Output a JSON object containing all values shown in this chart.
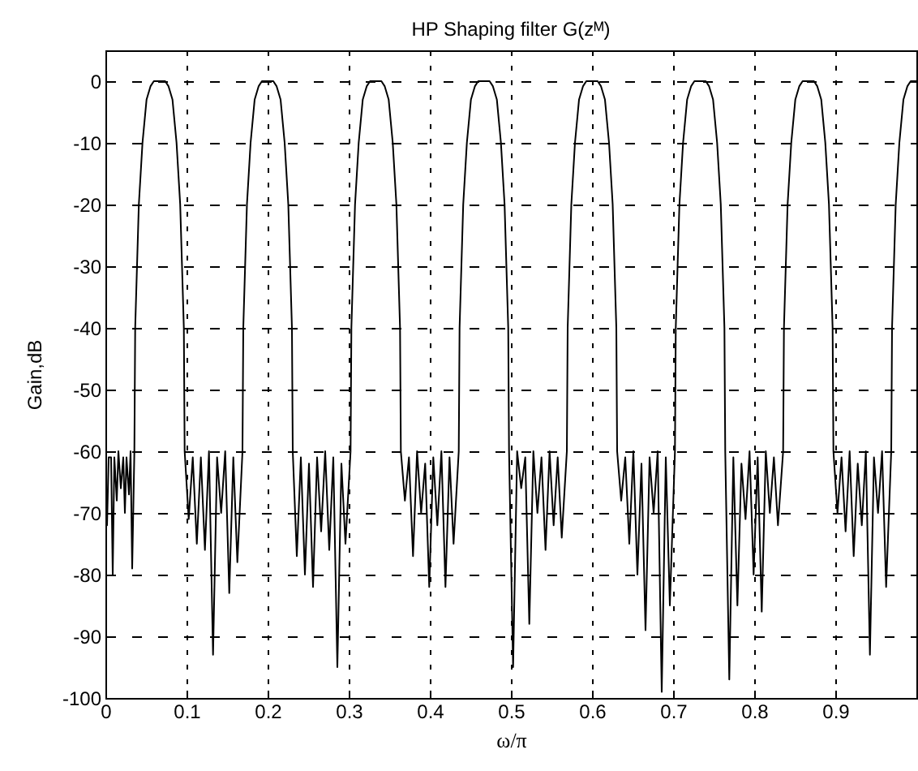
{
  "chart_data": {
    "type": "line",
    "title": "HP Shaping filter G(zᴹ)",
    "xlabel": "ω/π",
    "ylabel": "Gain,dB",
    "xlim": [
      0,
      1
    ],
    "ylim": [
      -100,
      5
    ],
    "xticks": [
      0,
      0.1,
      0.2,
      0.3,
      0.4,
      0.5,
      0.6,
      0.7,
      0.8,
      0.9
    ],
    "yticks": [
      -100,
      -90,
      -80,
      -70,
      -60,
      -50,
      -40,
      -30,
      -20,
      -10,
      0
    ],
    "grid": true,
    "line_style": "solid",
    "series": [
      {
        "color": "#000000",
        "x": [
          0,
          0.002,
          0.004,
          0.007,
          0.009,
          0.011,
          0.014,
          0.016,
          0.019,
          0.022,
          0.024,
          0.026,
          0.029,
          0.031,
          0.033,
          0.0357,
          0.0367,
          0.0412,
          0.0457,
          0.0507,
          0.0557,
          0.0597,
          0.0667,
          0.0737,
          0.0777,
          0.0827,
          0.0877,
          0.0922,
          0.0967,
          0.0977,
          0.1027,
          0.1077,
          0.1127,
          0.1177,
          0.1227,
          0.1277,
          0.1327,
          0.1377,
          0.1427,
          0.1477,
          0.1527,
          0.1577,
          0.1627,
          0.169,
          0.17,
          0.1745,
          0.179,
          0.184,
          0.189,
          0.193,
          0.2,
          0.207,
          0.211,
          0.216,
          0.221,
          0.2255,
          0.23,
          0.231,
          0.236,
          0.241,
          0.246,
          0.251,
          0.256,
          0.261,
          0.266,
          0.271,
          0.276,
          0.281,
          0.286,
          0.291,
          0.296,
          0.3023,
          0.3033,
          0.3078,
          0.3123,
          0.3173,
          0.3223,
          0.3263,
          0.3333,
          0.3403,
          0.3443,
          0.3493,
          0.3543,
          0.3588,
          0.3633,
          0.3643,
          0.3693,
          0.3743,
          0.3793,
          0.3843,
          0.3893,
          0.3943,
          0.3993,
          0.4043,
          0.4093,
          0.4143,
          0.4193,
          0.4243,
          0.4293,
          0.4357,
          0.4367,
          0.4412,
          0.4457,
          0.4507,
          0.4557,
          0.4597,
          0.4667,
          0.4737,
          0.4777,
          0.4827,
          0.4877,
          0.4922,
          0.4967,
          0.4977,
          0.5027,
          0.5077,
          0.5127,
          0.5177,
          0.5227,
          0.5277,
          0.5327,
          0.5377,
          0.5427,
          0.5477,
          0.5527,
          0.5577,
          0.5627,
          0.569,
          0.57,
          0.5745,
          0.579,
          0.584,
          0.589,
          0.593,
          0.6,
          0.607,
          0.611,
          0.616,
          0.621,
          0.6255,
          0.63,
          0.631,
          0.636,
          0.641,
          0.646,
          0.651,
          0.656,
          0.661,
          0.666,
          0.671,
          0.676,
          0.681,
          0.686,
          0.691,
          0.696,
          0.7023,
          0.7033,
          0.7078,
          0.7123,
          0.7173,
          0.7223,
          0.7263,
          0.7333,
          0.7403,
          0.7443,
          0.7493,
          0.7543,
          0.7588,
          0.7633,
          0.7643,
          0.7693,
          0.7743,
          0.7793,
          0.7843,
          0.7893,
          0.7943,
          0.7993,
          0.8043,
          0.8093,
          0.8143,
          0.8193,
          0.8243,
          0.8293,
          0.8357,
          0.8367,
          0.8412,
          0.8457,
          0.8507,
          0.8557,
          0.8597,
          0.8667,
          0.8737,
          0.8777,
          0.8827,
          0.8877,
          0.8922,
          0.8967,
          0.8977,
          0.9027,
          0.9077,
          0.9127,
          0.9177,
          0.9227,
          0.9277,
          0.9327,
          0.9377,
          0.9427,
          0.9477,
          0.9527,
          0.9577,
          0.9627,
          0.969,
          0.97,
          0.9745,
          0.979,
          0.984,
          0.989,
          0.993,
          1.0
        ],
        "values": [
          -60,
          -72,
          -61,
          -61,
          -80,
          -61,
          -68,
          -60,
          -66,
          -61,
          -70,
          -61,
          -67,
          -60,
          -79,
          -60,
          -40,
          -20,
          -10,
          -3,
          -0.8,
          0,
          0,
          0,
          -0.8,
          -3,
          -10,
          -20,
          -40,
          -60,
          -71,
          -61,
          -75,
          -61,
          -76,
          -60,
          -93,
          -61,
          -70,
          -60,
          -83,
          -61,
          -78,
          -60,
          -40,
          -20,
          -10,
          -3,
          -0.8,
          0,
          0,
          0,
          -0.8,
          -3,
          -10,
          -20,
          -40,
          -60,
          -77,
          -61,
          -80,
          -62,
          -82,
          -61,
          -73,
          -60,
          -76,
          -61,
          -95,
          -62,
          -75,
          -60,
          -40,
          -20,
          -10,
          -3,
          -0.8,
          0,
          0,
          0,
          -0.8,
          -3,
          -10,
          -20,
          -40,
          -60,
          -68,
          -61,
          -77,
          -60,
          -70,
          -62,
          -82,
          -61,
          -72,
          -60,
          -82,
          -61,
          -75,
          -60,
          -40,
          -20,
          -10,
          -3,
          -0.8,
          0,
          0,
          0,
          -0.8,
          -3,
          -10,
          -20,
          -40,
          -60,
          -95,
          -60,
          -66,
          -61,
          -88,
          -60,
          -70,
          -61,
          -76,
          -60,
          -72,
          -61,
          -74,
          -60,
          -40,
          -20,
          -10,
          -3,
          -0.8,
          0,
          0,
          0,
          -0.8,
          -3,
          -10,
          -20,
          -40,
          -60,
          -68,
          -61,
          -75,
          -60,
          -80,
          -62,
          -89,
          -61,
          -70,
          -60,
          -99,
          -61,
          -85,
          -60,
          -40,
          -20,
          -10,
          -3,
          -0.8,
          0,
          0,
          0,
          -0.8,
          -3,
          -10,
          -20,
          -40,
          -60,
          -97,
          -61,
          -85,
          -62,
          -71,
          -60,
          -80,
          -61,
          -86,
          -60,
          -70,
          -61,
          -72,
          -60,
          -40,
          -20,
          -10,
          -3,
          -0.8,
          0,
          0,
          0,
          -0.8,
          -3,
          -10,
          -20,
          -40,
          -60,
          -70,
          -61,
          -73,
          -60,
          -77,
          -62,
          -72,
          -60,
          -93,
          -61,
          -70,
          -60,
          -82,
          -60,
          -40,
          -20,
          -10,
          -3,
          -0.8,
          0,
          0
        ]
      }
    ]
  }
}
